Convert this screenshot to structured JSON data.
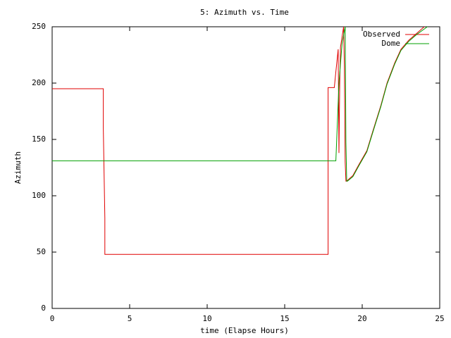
{
  "chart_data": {
    "type": "line",
    "title": "5: Azimuth vs. Time",
    "xlabel": "time (Elapse Hours)",
    "ylabel": "Azimuth",
    "xlim": [
      0,
      25
    ],
    "ylim": [
      0,
      250
    ],
    "xticks": [
      0,
      5,
      10,
      15,
      20,
      25
    ],
    "yticks": [
      0,
      50,
      100,
      150,
      200,
      250
    ],
    "legend": "top-right",
    "series": [
      {
        "name": "Observed",
        "color": "#e00000",
        "x": [
          0,
          3.3,
          3.3,
          3.4,
          3.4,
          17.8,
          17.8,
          18.2,
          18.3,
          18.45,
          18.5,
          18.55,
          18.6,
          18.8,
          18.85,
          18.9,
          18.95,
          19.0,
          19.4,
          19.8,
          20.3,
          20.7,
          21.2,
          21.6,
          22.1,
          22.5,
          23.0,
          23.5,
          24.0
        ],
        "values": [
          195,
          195,
          160,
          80,
          48,
          48,
          196,
          196,
          210,
          230,
          138,
          200,
          232,
          250,
          215,
          130,
          113,
          113,
          118,
          128,
          140,
          158,
          180,
          200,
          218,
          230,
          238,
          244,
          250
        ]
      },
      {
        "name": "Dome",
        "color": "#00a000",
        "x": [
          0,
          18.3,
          18.5,
          18.7,
          18.9,
          18.95,
          19.0,
          19.05,
          19.4,
          19.8,
          20.3,
          20.7,
          21.2,
          21.6,
          22.1,
          22.5,
          23.0,
          23.5,
          24.2
        ],
        "values": [
          131,
          131,
          200,
          235,
          250,
          147,
          113,
          113,
          117,
          127,
          139,
          157,
          179,
          199,
          217,
          229,
          237,
          243,
          250
        ]
      }
    ]
  }
}
